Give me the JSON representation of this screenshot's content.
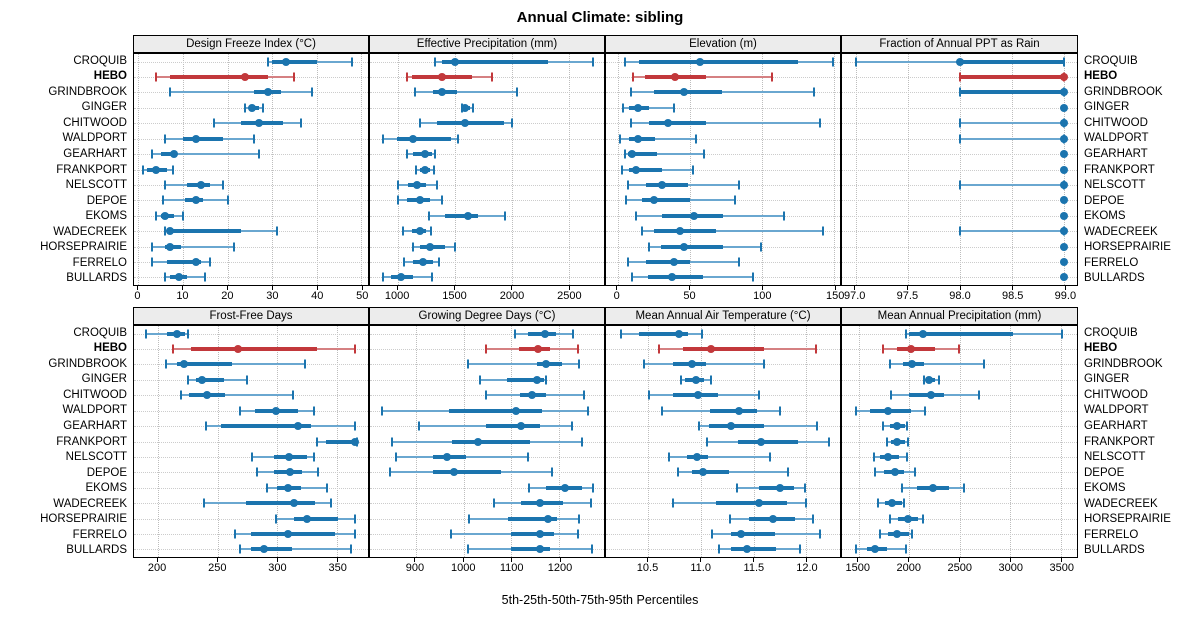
{
  "title": "Annual Climate: sibling",
  "xlabel": "5th-25th-50th-75th-95th Percentiles",
  "colors": {
    "blue": "#1b74ae",
    "blue_light": "#6aa7d0",
    "red": "#c2383b",
    "red_light": "#d58082",
    "grid": "#c9c9c9",
    "strip_bg": "#ececec",
    "border": "#000000"
  },
  "chart_data": {
    "type": "dot-whisker percentile trellis (5th-25th-50th-75th-95th)",
    "highlight_station": "HEBO",
    "stations": [
      "CROQUIB",
      "HEBO",
      "GRINDBROOK",
      "GINGER",
      "CHITWOOD",
      "WALDPORT",
      "GEARHART",
      "FRANKPORT",
      "NELSCOTT",
      "DEPOE",
      "EKOMS",
      "WADECREEK",
      "HORSEPRAIRIE",
      "FERRELO",
      "BULLARDS"
    ],
    "panels": [
      {
        "title": "Design Freeze Index (°C)",
        "xmin": -1,
        "xmax": 51.5,
        "ticks": [
          0,
          10,
          20,
          30,
          40,
          50
        ],
        "tick_labels": [
          "0",
          "10",
          "20",
          "30",
          "40",
          "50"
        ],
        "values": [
          [
            29,
            30,
            33,
            40,
            48
          ],
          [
            4,
            7,
            24,
            29,
            35
          ],
          [
            7,
            26,
            29,
            32,
            39
          ],
          [
            24,
            25,
            25.5,
            27,
            28
          ],
          [
            17,
            23,
            27,
            32.5,
            36.5
          ],
          [
            6,
            10,
            13,
            19,
            26
          ],
          [
            3,
            5,
            8,
            8.5,
            27
          ],
          [
            1,
            2,
            4,
            6.5,
            7.7
          ],
          [
            6,
            11,
            14,
            16,
            19
          ],
          [
            5.5,
            10.5,
            13,
            14.5,
            20
          ],
          [
            4,
            5,
            6,
            8,
            10
          ],
          [
            6,
            6.5,
            7,
            23,
            31
          ],
          [
            3,
            6,
            7,
            9.5,
            21.5
          ],
          [
            3,
            6.5,
            13,
            14,
            16
          ],
          [
            6,
            7,
            9,
            11,
            15
          ]
        ]
      },
      {
        "title": "Effective Precipitation (mm)",
        "xmin": 755,
        "xmax": 2810,
        "ticks": [
          1000,
          1500,
          2000,
          2500
        ],
        "tick_labels": [
          "1000",
          "1500",
          "2000",
          "2500"
        ],
        "values": [
          [
            1330,
            1390,
            1500,
            2320,
            2710
          ],
          [
            1080,
            1120,
            1390,
            1650,
            1830
          ],
          [
            1150,
            1310,
            1390,
            1520,
            2050
          ],
          [
            1560,
            1575,
            1590,
            1630,
            1660
          ],
          [
            1190,
            1340,
            1590,
            1930,
            2005
          ],
          [
            870,
            990,
            1130,
            1470,
            1525
          ],
          [
            1080,
            1130,
            1240,
            1300,
            1325
          ],
          [
            1160,
            1190,
            1235,
            1285,
            1320
          ],
          [
            1005,
            1090,
            1170,
            1250,
            1340
          ],
          [
            1005,
            1080,
            1190,
            1280,
            1390
          ],
          [
            1270,
            1410,
            1620,
            1705,
            1940
          ],
          [
            1045,
            1120,
            1190,
            1250,
            1295
          ],
          [
            1130,
            1190,
            1280,
            1410,
            1500
          ],
          [
            1050,
            1130,
            1220,
            1310,
            1360
          ],
          [
            870,
            940,
            1025,
            1130,
            1300
          ]
        ]
      },
      {
        "title": "Elevation (m)",
        "xmin": -8,
        "xmax": 154,
        "ticks": [
          0,
          50,
          100,
          150
        ],
        "tick_labels": [
          "0",
          "50",
          "100",
          "150"
        ],
        "values": [
          [
            5,
            15,
            57,
            125,
            149
          ],
          [
            11,
            19,
            40,
            61,
            107
          ],
          [
            9,
            25,
            46,
            72,
            136
          ],
          [
            4,
            8,
            14,
            22,
            39
          ],
          [
            9,
            22,
            35,
            61,
            140
          ],
          [
            2,
            8,
            14,
            26,
            54
          ],
          [
            5,
            7,
            10,
            27,
            60
          ],
          [
            3,
            8,
            13,
            31,
            52
          ],
          [
            7,
            20,
            31,
            49,
            84
          ],
          [
            6,
            17,
            25,
            50,
            81
          ],
          [
            13,
            31,
            53,
            73,
            115
          ],
          [
            17,
            25,
            43,
            68,
            142
          ],
          [
            22,
            30,
            46,
            73,
            99
          ],
          [
            7,
            20,
            39,
            50,
            84
          ],
          [
            10,
            21,
            38,
            59,
            94
          ]
        ]
      },
      {
        "title": "Fraction of Annual PPT as Rain",
        "xmin": 96.87,
        "xmax": 99.12,
        "ticks": [
          97.0,
          97.5,
          98.0,
          98.5,
          99.0
        ],
        "tick_labels": [
          "97.0",
          "97.5",
          "98.0",
          "98.5",
          "99.0"
        ],
        "values": [
          [
            97.0,
            98.0,
            98.0,
            99.0,
            99.0
          ],
          [
            98.0,
            98.0,
            99.0,
            99.0,
            99.0
          ],
          [
            98.0,
            98.0,
            99.0,
            99.0,
            99.0
          ],
          [
            99.0,
            99.0,
            99.0,
            99.0,
            99.0
          ],
          [
            98.0,
            99.0,
            99.0,
            99.0,
            99.0
          ],
          [
            98.0,
            99.0,
            99.0,
            99.0,
            99.0
          ],
          [
            99.0,
            99.0,
            99.0,
            99.0,
            99.0
          ],
          [
            99.0,
            99.0,
            99.0,
            99.0,
            99.0
          ],
          [
            98.0,
            99.0,
            99.0,
            99.0,
            99.0
          ],
          [
            99.0,
            99.0,
            99.0,
            99.0,
            99.0
          ],
          [
            99.0,
            99.0,
            99.0,
            99.0,
            99.0
          ],
          [
            98.0,
            99.0,
            99.0,
            99.0,
            99.0
          ],
          [
            99.0,
            99.0,
            99.0,
            99.0,
            99.0
          ],
          [
            99.0,
            99.0,
            99.0,
            99.0,
            99.0
          ],
          [
            99.0,
            99.0,
            99.0,
            99.0,
            99.0
          ]
        ]
      },
      {
        "title": "Frost-Free Days",
        "xmin": 180,
        "xmax": 376,
        "ticks": [
          200,
          250,
          300,
          350
        ],
        "tick_labels": [
          "200",
          "250",
          "300",
          "350"
        ],
        "values": [
          [
            190,
            208,
            216,
            223,
            225
          ],
          [
            213,
            228,
            267,
            333,
            365
          ],
          [
            207,
            216,
            222,
            262,
            323
          ],
          [
            225,
            232,
            237,
            255,
            275
          ],
          [
            219,
            226,
            241,
            256,
            313
          ],
          [
            269,
            281,
            299,
            317,
            331
          ],
          [
            240,
            253,
            317,
            328,
            365
          ],
          [
            333,
            341,
            365,
            366,
            367
          ],
          [
            279,
            297,
            310,
            325,
            331
          ],
          [
            283,
            297,
            311,
            321,
            334
          ],
          [
            291,
            300,
            309,
            320,
            342
          ],
          [
            239,
            274,
            314,
            332,
            345
          ],
          [
            299,
            314,
            325,
            351,
            365
          ],
          [
            265,
            278,
            309,
            348,
            365
          ],
          [
            269,
            278,
            289,
            312,
            362
          ]
        ]
      },
      {
        "title": "Growing Degree Days (°C)",
        "xmin": 805,
        "xmax": 1293,
        "ticks": [
          900,
          1000,
          1100,
          1200
        ],
        "tick_labels": [
          "900",
          "1000",
          "1100",
          "1200"
        ],
        "values": [
          [
            1108,
            1135,
            1170,
            1192,
            1229
          ],
          [
            1046,
            1116,
            1156,
            1181,
            1239
          ],
          [
            1010,
            1154,
            1173,
            1206,
            1240
          ],
          [
            1035,
            1090,
            1154,
            1168,
            1171
          ],
          [
            1047,
            1117,
            1142,
            1173,
            1252
          ],
          [
            830,
            969,
            1110,
            1163,
            1259
          ],
          [
            907,
            1047,
            1119,
            1159,
            1226
          ],
          [
            850,
            976,
            1031,
            1138,
            1248
          ],
          [
            860,
            937,
            965,
            1005,
            1135
          ],
          [
            846,
            937,
            981,
            1079,
            1184
          ],
          [
            1136,
            1171,
            1212,
            1247,
            1271
          ],
          [
            1063,
            1119,
            1159,
            1208,
            1266
          ],
          [
            1012,
            1093,
            1177,
            1194,
            1240
          ],
          [
            974,
            1100,
            1159,
            1189,
            1238
          ],
          [
            1009,
            1100,
            1159,
            1180,
            1268
          ]
        ]
      },
      {
        "title": "Mean Annual Air Temperature (°C)",
        "xmin": 10.1,
        "xmax": 12.32,
        "ticks": [
          10.5,
          11.0,
          11.5,
          12.0
        ],
        "tick_labels": [
          "10.5",
          "11.0",
          "11.5",
          "12.0"
        ],
        "values": [
          [
            10.24,
            10.41,
            10.79,
            10.88,
            11.01
          ],
          [
            10.6,
            10.83,
            11.1,
            11.6,
            12.09
          ],
          [
            10.46,
            10.74,
            10.92,
            11.05,
            11.6
          ],
          [
            10.81,
            10.85,
            10.95,
            11.03,
            11.1
          ],
          [
            10.51,
            10.74,
            10.97,
            11.16,
            11.55
          ],
          [
            10.63,
            11.09,
            11.36,
            11.53,
            11.75
          ],
          [
            10.98,
            11.08,
            11.29,
            11.6,
            12.1
          ],
          [
            11.06,
            11.35,
            11.57,
            11.92,
            12.22
          ],
          [
            10.7,
            10.87,
            10.96,
            11.07,
            11.66
          ],
          [
            10.78,
            10.92,
            11.02,
            11.27,
            11.83
          ],
          [
            11.34,
            11.55,
            11.75,
            11.88,
            11.99
          ],
          [
            10.74,
            11.14,
            11.55,
            11.82,
            12.0
          ],
          [
            11.28,
            11.46,
            11.68,
            11.89,
            12.06
          ],
          [
            11.11,
            11.29,
            11.38,
            11.7,
            12.13
          ],
          [
            11.17,
            11.29,
            11.44,
            11.71,
            11.94
          ]
        ]
      },
      {
        "title": "Mean Annual Precipitation (mm)",
        "xmin": 1336,
        "xmax": 3659,
        "ticks": [
          1500,
          2000,
          2500,
          3000,
          3500
        ],
        "tick_labels": [
          "1500",
          "2000",
          "2500",
          "3000",
          "3500"
        ],
        "values": [
          [
            1970,
            2000,
            2140,
            3030,
            3510
          ],
          [
            1740,
            1880,
            2020,
            2260,
            2490
          ],
          [
            1810,
            1935,
            2030,
            2150,
            2735
          ],
          [
            2150,
            2165,
            2195,
            2260,
            2295
          ],
          [
            1825,
            2000,
            2220,
            2340,
            2695
          ],
          [
            1470,
            1610,
            1790,
            2020,
            2160
          ],
          [
            1740,
            1815,
            1880,
            1960,
            1980
          ],
          [
            1780,
            1825,
            1880,
            1960,
            1985
          ],
          [
            1650,
            1715,
            1795,
            1900,
            1975
          ],
          [
            1665,
            1750,
            1860,
            1945,
            2055
          ],
          [
            1925,
            2075,
            2240,
            2390,
            2545
          ],
          [
            1695,
            1760,
            1835,
            1925,
            1945
          ],
          [
            1815,
            1890,
            1990,
            2090,
            2140
          ],
          [
            1715,
            1795,
            1880,
            2000,
            2025
          ],
          [
            1470,
            1585,
            1665,
            1780,
            1965
          ]
        ]
      }
    ]
  }
}
